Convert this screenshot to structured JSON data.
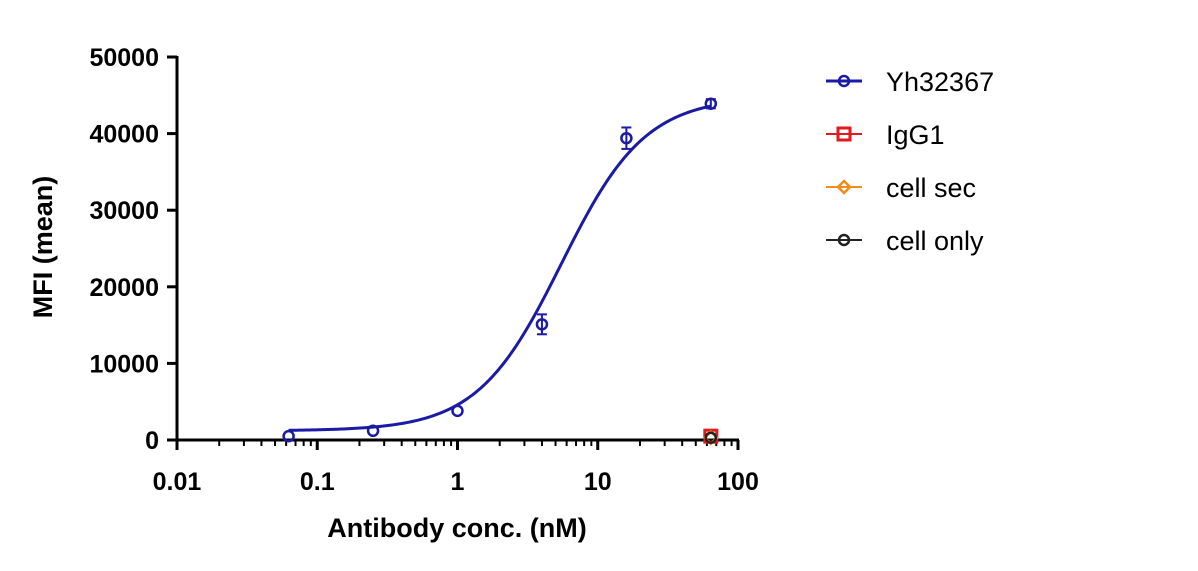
{
  "chart_data": {
    "type": "scatter",
    "title": "",
    "xlabel": "Antibody conc. (nM)",
    "ylabel": "MFI (mean)",
    "x_scale": "log",
    "xlim": [
      0.01,
      100
    ],
    "ylim": [
      0,
      50000
    ],
    "x_tick_labels": [
      "0.01",
      "0.1",
      "1",
      "10",
      "100"
    ],
    "y_tick_labels": [
      "0",
      "10000",
      "20000",
      "30000",
      "40000",
      "50000"
    ],
    "legend_position": "right",
    "grid": false,
    "series": [
      {
        "name": "Yh32367",
        "color": "#1a1aa6",
        "marker": "circle",
        "x": [
          0.0625,
          0.25,
          1,
          4,
          16,
          64
        ],
        "y": [
          500,
          1200,
          3800,
          15100,
          39400,
          43900
        ],
        "error": [
          0,
          0,
          0,
          1300,
          1400,
          600
        ],
        "fit_curve": {
          "bottom": 1200,
          "top": 44800,
          "ec50": 5.5,
          "hill": 1.45
        }
      },
      {
        "name": "IgG1",
        "color": "#e31a1c",
        "marker": "square",
        "x": [
          64
        ],
        "y": [
          500
        ]
      },
      {
        "name": "cell sec",
        "color": "#f28c1c",
        "marker": "diamond",
        "x": [
          64
        ],
        "y": [
          300
        ]
      },
      {
        "name": "cell only",
        "color": "#222222",
        "marker": "circle",
        "x": [
          64
        ],
        "y": [
          300
        ]
      }
    ]
  }
}
